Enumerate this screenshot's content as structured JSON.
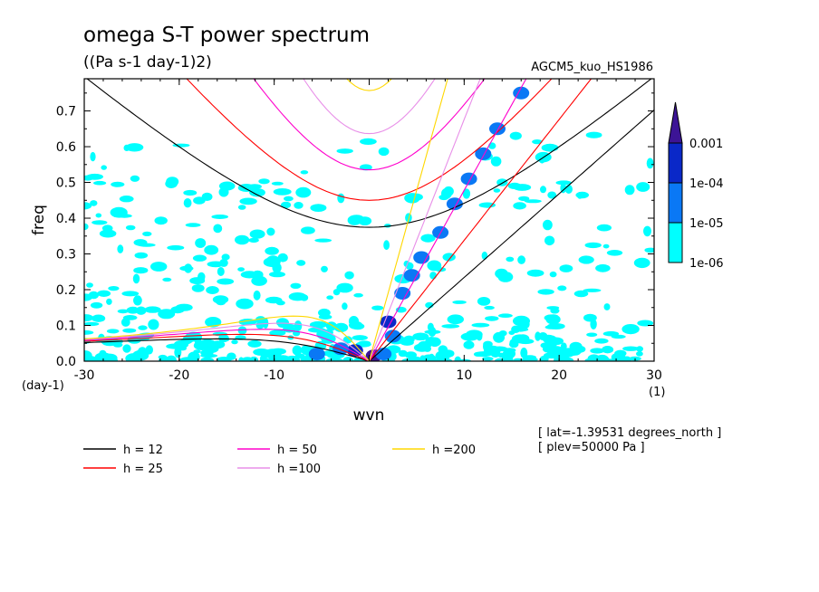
{
  "chart_data": {
    "type": "heatmap",
    "title": "omega S-T power spectrum",
    "subtitle": "((Pa s-1 day-1)2)",
    "model_label": "AGCM5_kuo_HS1986",
    "xlabel": "wvn",
    "ylabel": "freq",
    "x_unit": "(1)",
    "y_unit": "(day-1)",
    "xlim": [
      -30,
      30
    ],
    "ylim": [
      0,
      0.79
    ],
    "x_ticks": [
      "-30",
      "-20",
      "-10",
      "0",
      "10",
      "20",
      "30"
    ],
    "y_ticks": [
      "0.0",
      "0.1",
      "0.2",
      "0.3",
      "0.4",
      "0.5",
      "0.6",
      "0.7"
    ],
    "colorbar": {
      "levels": [
        "1e-06",
        "1e-05",
        "1e-04",
        "0.001"
      ],
      "colors": [
        "#00ffff",
        "#0a78f5",
        "#0a28c8",
        "#3c1496"
      ],
      "extend": "max"
    },
    "dispersion_curves": [
      {
        "name": "h = 12",
        "color": "#000000",
        "h": 12
      },
      {
        "name": "h = 25",
        "color": "#ff0000",
        "h": 25
      },
      {
        "name": "h = 50",
        "color": "#ff00cc",
        "h": 50
      },
      {
        "name": "h =100",
        "color": "#e88fe8",
        "h": 100
      },
      {
        "name": "h =200",
        "color": "#ffd700",
        "h": 200
      }
    ],
    "annotations": [
      "[ lat=-1.39531 degrees_north ]",
      "[ plev=50000 Pa ]"
    ],
    "power_blobs": [
      {
        "x": 0.5,
        "y": 0.015,
        "level": 3
      },
      {
        "x": -1.5,
        "y": 0.03,
        "level": 2
      },
      {
        "x": 2.0,
        "y": 0.11,
        "level": 2
      },
      {
        "x": 3.5,
        "y": 0.19,
        "level": 1
      },
      {
        "x": 4.5,
        "y": 0.24,
        "level": 1
      },
      {
        "x": 5.5,
        "y": 0.29,
        "level": 1
      },
      {
        "x": 7.5,
        "y": 0.36,
        "level": 1
      },
      {
        "x": 9.0,
        "y": 0.44,
        "level": 1
      },
      {
        "x": 10.5,
        "y": 0.51,
        "level": 1
      },
      {
        "x": 12.0,
        "y": 0.58,
        "level": 1
      },
      {
        "x": 13.5,
        "y": 0.65,
        "level": 1
      },
      {
        "x": 16.0,
        "y": 0.75,
        "level": 1
      },
      {
        "x": -3.0,
        "y": 0.035,
        "level": 1
      },
      {
        "x": 1.5,
        "y": 0.02,
        "level": 1
      },
      {
        "x": -5.5,
        "y": 0.02,
        "level": 1
      },
      {
        "x": 2.5,
        "y": 0.07,
        "level": 1
      }
    ]
  }
}
